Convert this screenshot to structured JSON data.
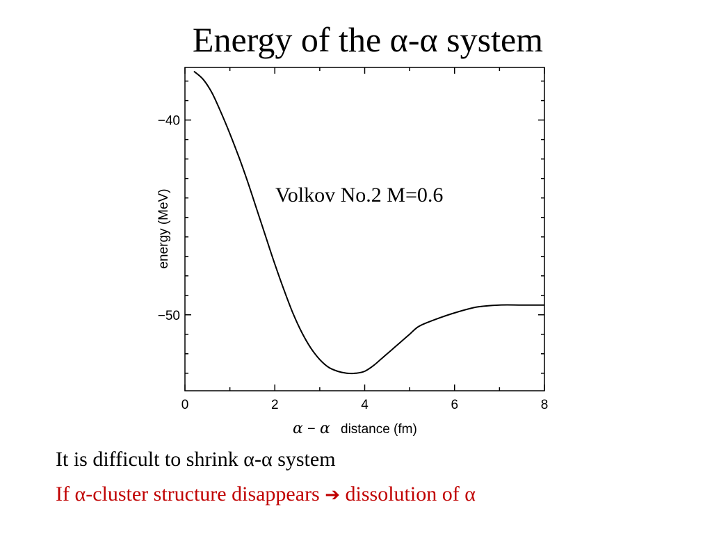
{
  "slide": {
    "title": "Energy of the α-α system",
    "line1": "It is difficult to shrink α-α system",
    "line2_before": "If α-cluster structure disappears",
    "line2_arrow": "➔",
    "line2_after": "dissolution of  α"
  },
  "colors": {
    "curve": "#000000",
    "line2_text": "#c00000"
  },
  "chart_data": {
    "type": "line",
    "xlabel_symbol_a": "α",
    "xlabel_dash": "−",
    "xlabel_symbol_b": "α",
    "xlabel_rest": "distance (fm)",
    "ylabel": "energy (MeV)",
    "annotation": "Volkov No.2 M=0.6",
    "xlim": [
      0,
      8
    ],
    "ylim": [
      -53.9,
      -37.3
    ],
    "xticks": [
      0,
      2,
      4,
      6,
      8
    ],
    "yticks": [
      -40,
      -50
    ],
    "ytick_labels": [
      "−40",
      "−50"
    ],
    "grid": false,
    "series": [
      {
        "x": [
          0.2,
          0.4,
          0.6,
          0.8,
          1.0,
          1.2,
          1.4,
          1.6,
          1.8,
          2.0,
          2.2,
          2.4,
          2.6,
          2.8,
          3.0,
          3.2,
          3.4,
          3.6,
          3.8,
          4.0,
          4.2,
          4.4,
          4.6,
          4.8,
          5.0,
          5.2,
          5.5,
          6.0,
          6.5,
          7.0,
          7.5,
          8.0
        ],
        "y": [
          -37.5,
          -37.9,
          -38.6,
          -39.6,
          -40.7,
          -41.9,
          -43.2,
          -44.6,
          -46.0,
          -47.4,
          -48.7,
          -49.9,
          -50.9,
          -51.7,
          -52.3,
          -52.7,
          -52.9,
          -53.0,
          -53.0,
          -52.9,
          -52.6,
          -52.2,
          -51.8,
          -51.4,
          -51.0,
          -50.6,
          -50.3,
          -49.9,
          -49.6,
          -49.5,
          -49.5,
          -49.5
        ]
      }
    ]
  }
}
